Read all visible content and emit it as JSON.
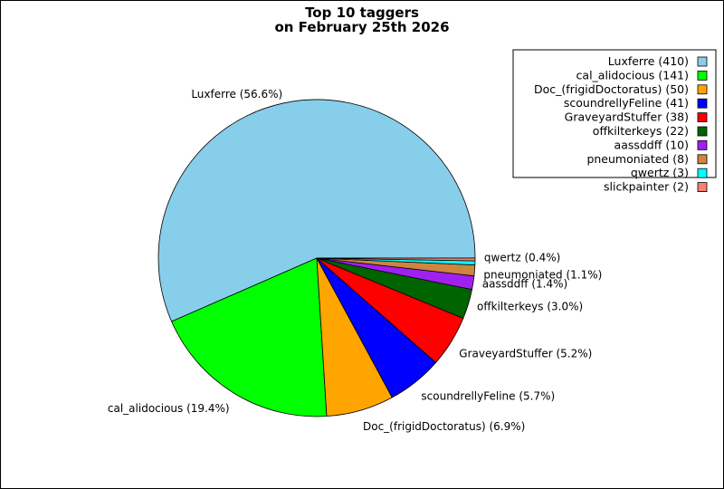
{
  "chart_data": {
    "type": "pie",
    "title": "Top 10 taggers",
    "subtitle": "on February 25th 2026",
    "legend_position": "top-right",
    "slices": [
      {
        "name": "Luxferre",
        "value": 410,
        "percent_label": "Luxferre (56.6%)",
        "legend_label": "Luxferre (410)",
        "color": "#87ceeb"
      },
      {
        "name": "cal_alidocious",
        "value": 141,
        "percent_label": "cal_alidocious (19.4%)",
        "legend_label": "cal_alidocious (141)",
        "color": "#00ff00"
      },
      {
        "name": "Doc_(frigidDoctoratus)",
        "value": 50,
        "percent_label": "Doc_(frigidDoctoratus) (6.9%)",
        "legend_label": "Doc_(frigidDoctoratus) (50)",
        "color": "#ffa500"
      },
      {
        "name": "scoundrellyFeline",
        "value": 41,
        "percent_label": "scoundrellyFeline (5.7%)",
        "legend_label": "scoundrellyFeline (41)",
        "color": "#0000ff"
      },
      {
        "name": "GraveyardStuffer",
        "value": 38,
        "percent_label": "GraveyardStuffer (5.2%)",
        "legend_label": "GraveyardStuffer (38)",
        "color": "#ff0000"
      },
      {
        "name": "offkilterkeys",
        "value": 22,
        "percent_label": "offkilterkeys (3.0%)",
        "legend_label": "offkilterkeys (22)",
        "color": "#006400"
      },
      {
        "name": "aassddff",
        "value": 10,
        "percent_label": "aassddff (1.4%)",
        "legend_label": "aassddff (10)",
        "color": "#a020f0"
      },
      {
        "name": "pneumoniated",
        "value": 8,
        "percent_label": "pneumoniated (1.1%)",
        "legend_label": "pneumoniated (8)",
        "color": "#cd853f"
      },
      {
        "name": "qwertz",
        "value": 3,
        "percent_label": "qwertz (0.4%)",
        "legend_label": "qwertz (3)",
        "color": "#00ffff"
      },
      {
        "name": "slickpainter",
        "value": 2,
        "percent_label": "",
        "legend_label": "slickpainter (2)",
        "color": "#fa8072"
      }
    ]
  }
}
